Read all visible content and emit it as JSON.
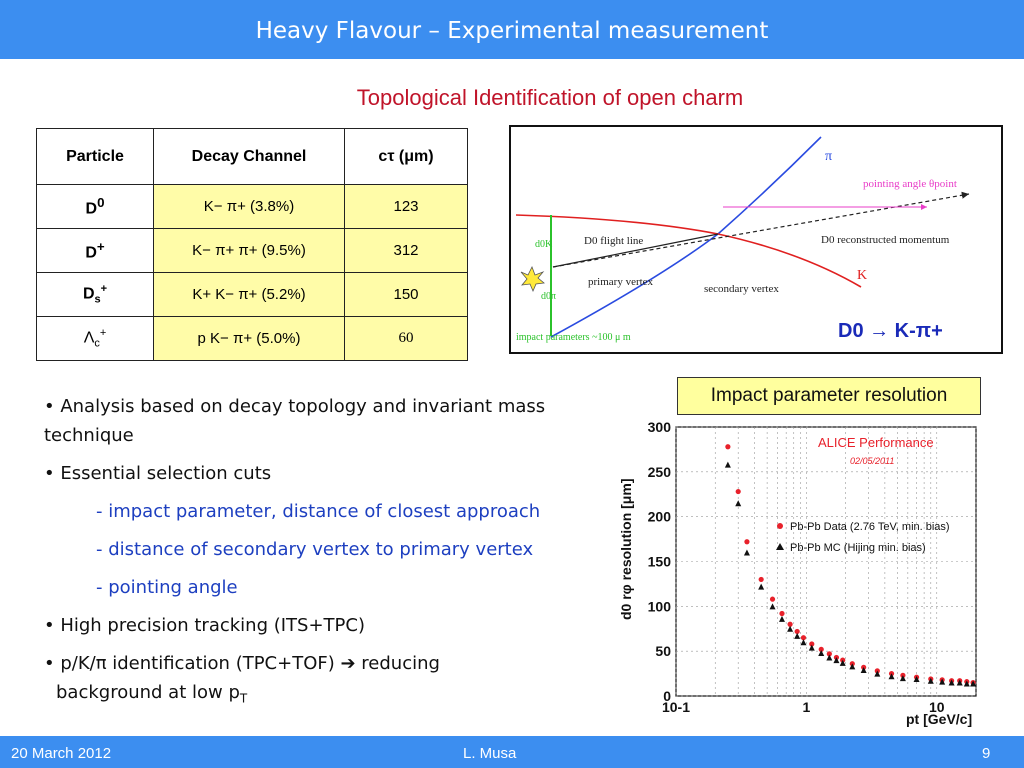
{
  "header": {
    "title": "Heavy Flavour – Experimental measurement"
  },
  "subtitle": "Topological Identification of open charm",
  "table": {
    "headers": [
      "Particle",
      "Decay Channel",
      "cτ (μm)"
    ],
    "rows": [
      {
        "particle": "D0",
        "channel": "K− π+  (3.8%)",
        "ctau": "123"
      },
      {
        "particle": "D+",
        "channel": "K− π+ π+  (9.5%)",
        "ctau": "312"
      },
      {
        "particle": "Ds+",
        "channel": "K+ K− π+  (5.2%)",
        "ctau": "150"
      },
      {
        "particle": "Λc+",
        "channel": "p K− π+  (5.0%)",
        "ctau": "60"
      }
    ]
  },
  "diagram": {
    "labels": {
      "pi": "π",
      "pointing_angle": "pointing angle θpoint",
      "d0_flight_line": "D0 flight line",
      "d0_reco_momentum": "D0 reconstructed momentum",
      "primary_vertex": "primary vertex",
      "secondary_vertex": "secondary vertex",
      "k": "K",
      "d0k": "d0K",
      "d0pi": "d0π",
      "impact_params": "impact parameters ~100 μ m"
    },
    "decay": "D0 → K-π+"
  },
  "impact_box": "Impact parameter resolution",
  "bullets": {
    "b1": "• Analysis based on decay topology and invariant mass technique",
    "b2": "• Essential selection cuts",
    "s1": "- impact parameter, distance of closest approach",
    "s2": "- distance of secondary vertex to primary vertex",
    "s3": "- pointing angle",
    "b3": "• High precision tracking (ITS+TPC)",
    "b4a": "• p/K/π identification (TPC+TOF) ➔ reducing",
    "b4b": "background at low p",
    "b4sub": "T"
  },
  "chart_data": {
    "type": "scatter",
    "title": "ALICE Performance",
    "subtitle": "02/05/2011",
    "xlabel": "pt [GeV/c]",
    "ylabel": "d0 rφ resolution [μm]",
    "xscale": "log",
    "xlim": [
      0.1,
      20
    ],
    "ylim": [
      0,
      300
    ],
    "yticks": [
      0,
      50,
      100,
      150,
      200,
      250,
      300
    ],
    "xticks": [
      "10-1",
      "1",
      "10"
    ],
    "legend": "right",
    "series": [
      {
        "name": "Pb-Pb Data (2.76 TeV, min. bias)",
        "color": "#e8212b",
        "marker": "circle",
        "x": [
          0.25,
          0.3,
          0.35,
          0.45,
          0.55,
          0.65,
          0.75,
          0.85,
          0.95,
          1.1,
          1.3,
          1.5,
          1.7,
          1.9,
          2.25,
          2.75,
          3.5,
          4.5,
          5.5,
          7,
          9,
          11,
          13,
          15,
          17,
          19
        ],
        "y": [
          278,
          228,
          172,
          130,
          108,
          92,
          80,
          72,
          65,
          58,
          52,
          47,
          43,
          40,
          36,
          32,
          28,
          25,
          23,
          21,
          19,
          18,
          17,
          17,
          16,
          15
        ]
      },
      {
        "name": "Pb-Pb MC (Hijing min. bias)",
        "color": "#111111",
        "marker": "triangle",
        "x": [
          0.25,
          0.3,
          0.35,
          0.45,
          0.55,
          0.65,
          0.75,
          0.85,
          0.95,
          1.1,
          1.3,
          1.5,
          1.7,
          1.9,
          2.25,
          2.75,
          3.5,
          4.5,
          5.5,
          7,
          9,
          11,
          13,
          15,
          17,
          19
        ],
        "y": [
          258,
          215,
          160,
          122,
          100,
          86,
          75,
          67,
          60,
          54,
          48,
          43,
          40,
          37,
          33,
          29,
          25,
          22,
          20,
          19,
          17,
          16,
          15,
          15,
          14,
          14
        ]
      }
    ]
  },
  "footer": {
    "date": "20 March 2012",
    "author": "L. Musa",
    "page": "9"
  }
}
